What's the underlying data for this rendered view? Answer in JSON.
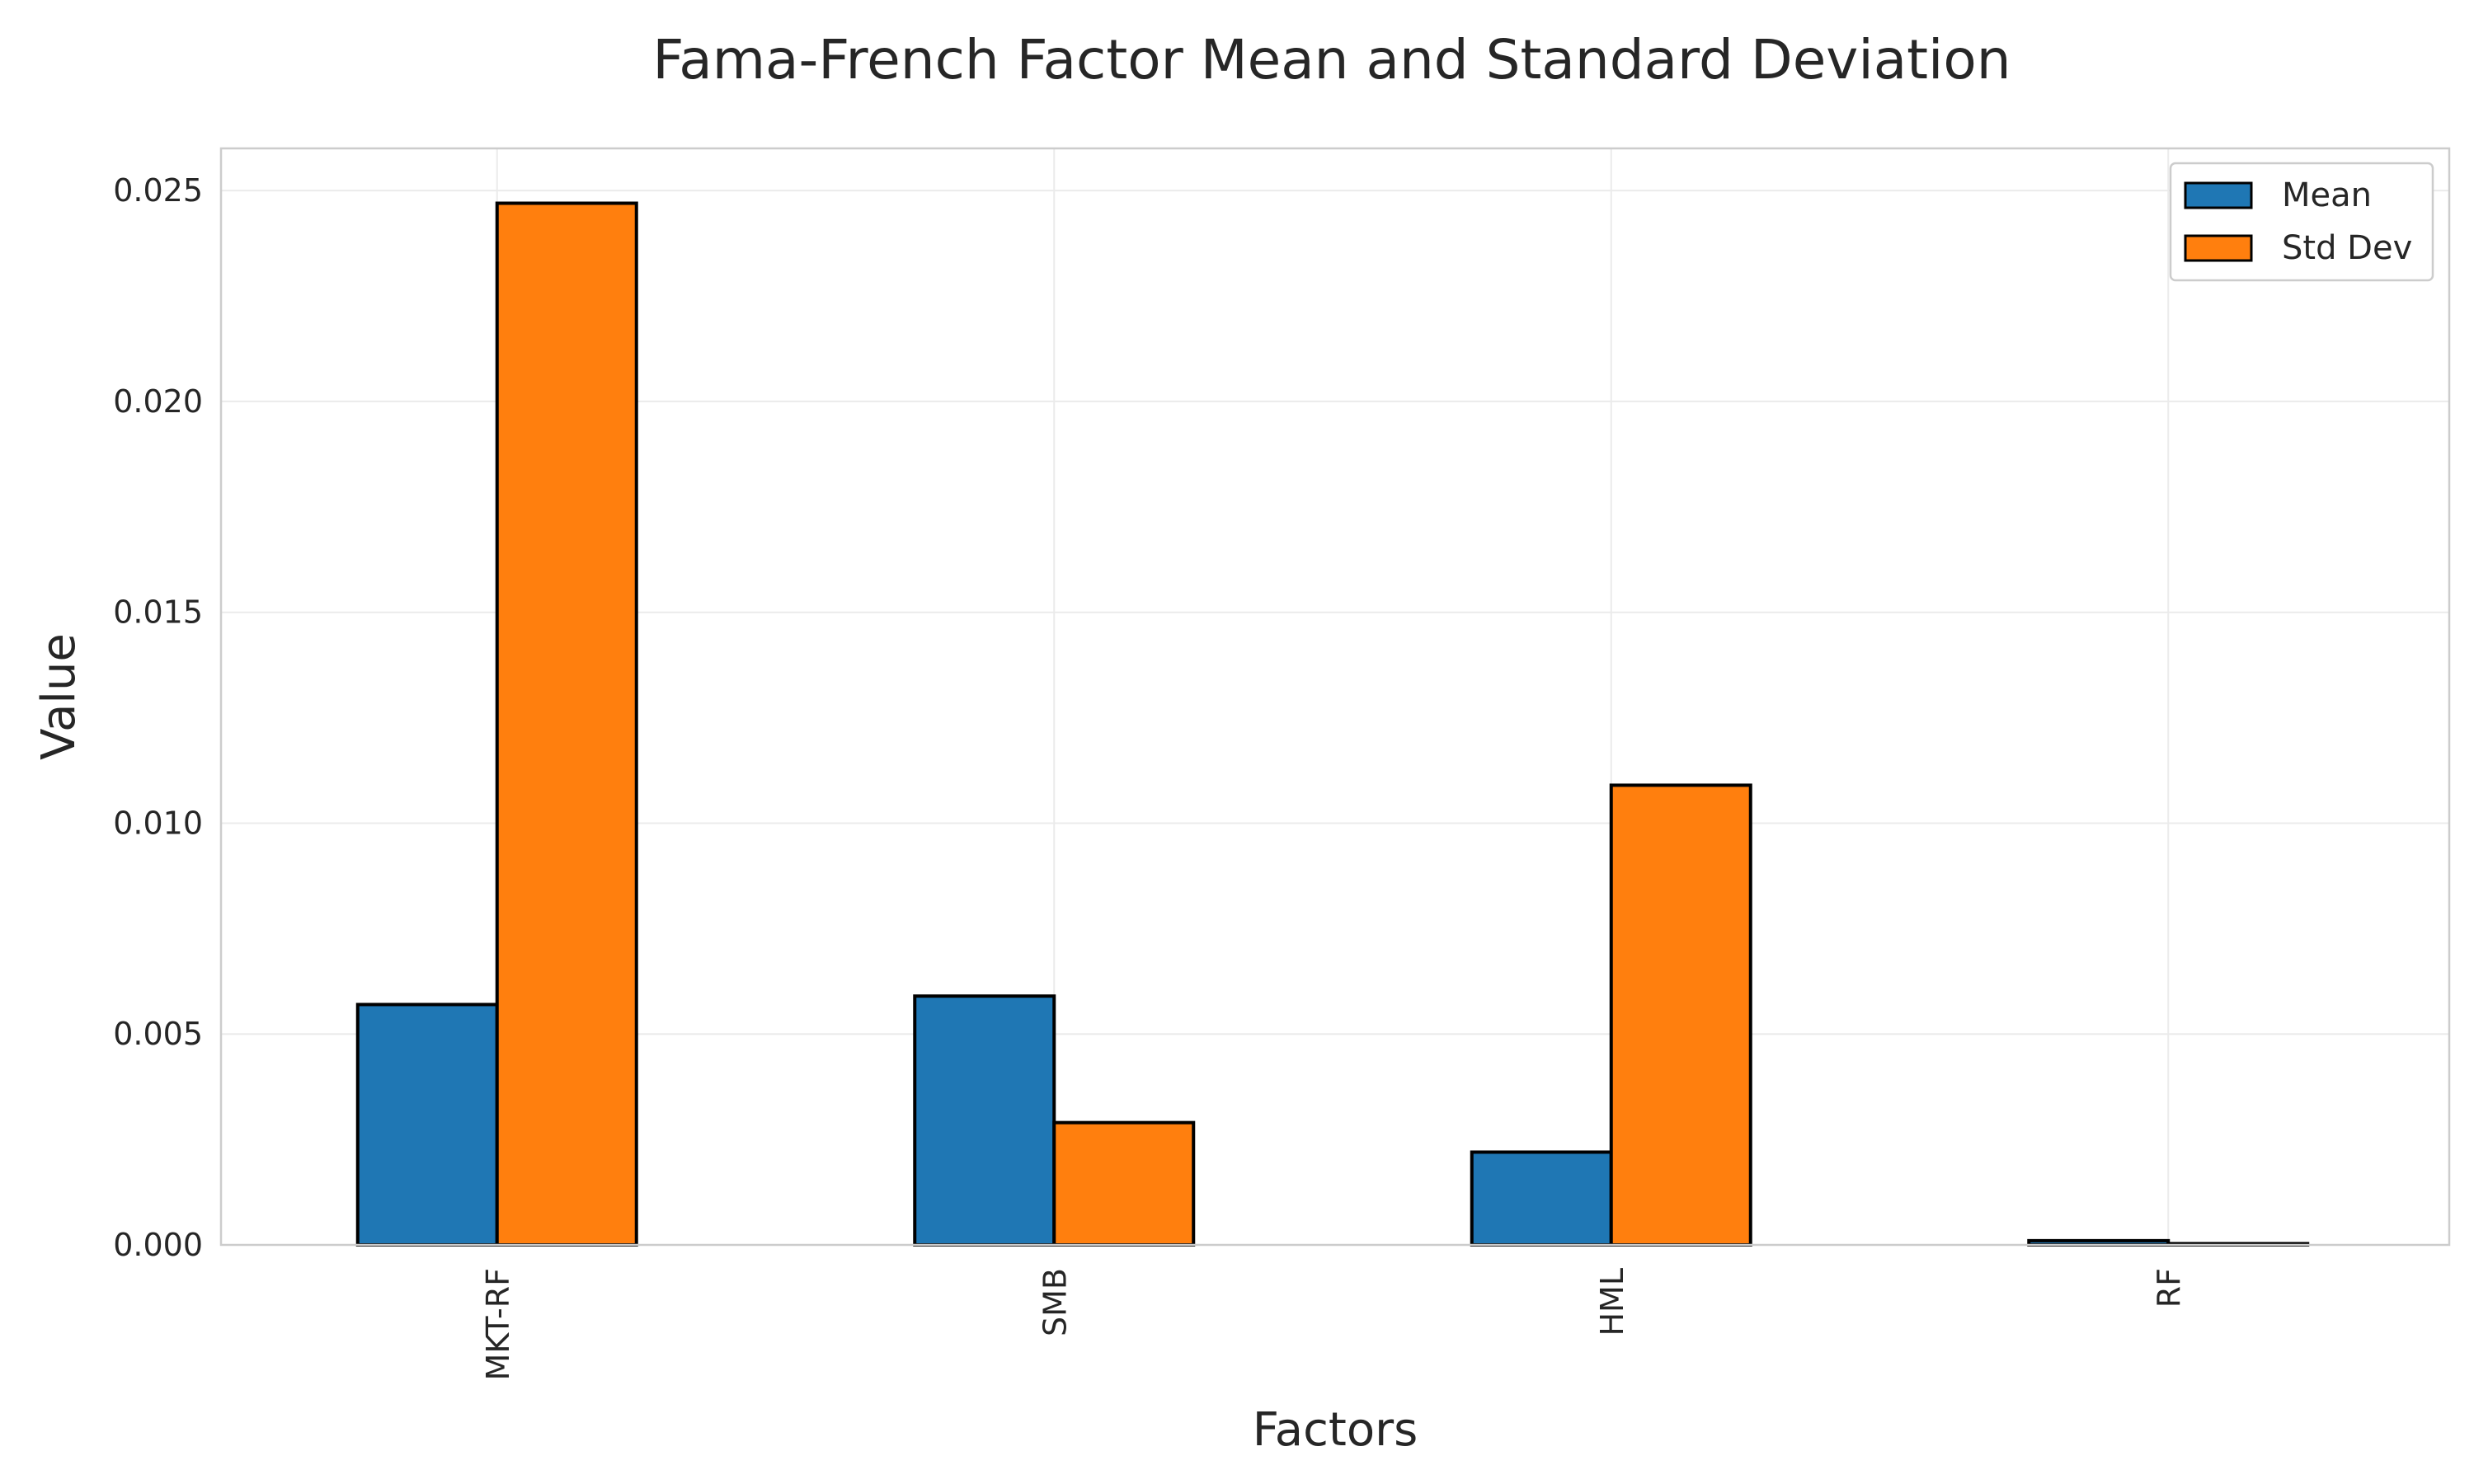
{
  "chart_data": {
    "type": "bar",
    "title": "Fama-French Factor Mean and Standard Deviation",
    "xlabel": "Factors",
    "ylabel": "Value",
    "categories": [
      "MKT-RF",
      "SMB",
      "HML",
      "RF"
    ],
    "series": [
      {
        "name": "Mean",
        "color": "#1f77b4",
        "values": [
          0.0057,
          0.0059,
          0.0022,
          0.0001
        ]
      },
      {
        "name": "Std Dev",
        "color": "#ff7f0e",
        "values": [
          0.0247,
          0.0029,
          0.0109,
          3e-05
        ]
      }
    ],
    "ylim": [
      0,
      0.026
    ],
    "yticks": [
      0.0,
      0.005,
      0.01,
      0.015,
      0.02,
      0.025
    ],
    "ytick_labels": [
      "0.000",
      "0.005",
      "0.010",
      "0.015",
      "0.020",
      "0.025"
    ],
    "x_tick_rotation": "vertical",
    "grid": true,
    "legend_position": "top-right",
    "bar_edge_color": "#000000"
  }
}
